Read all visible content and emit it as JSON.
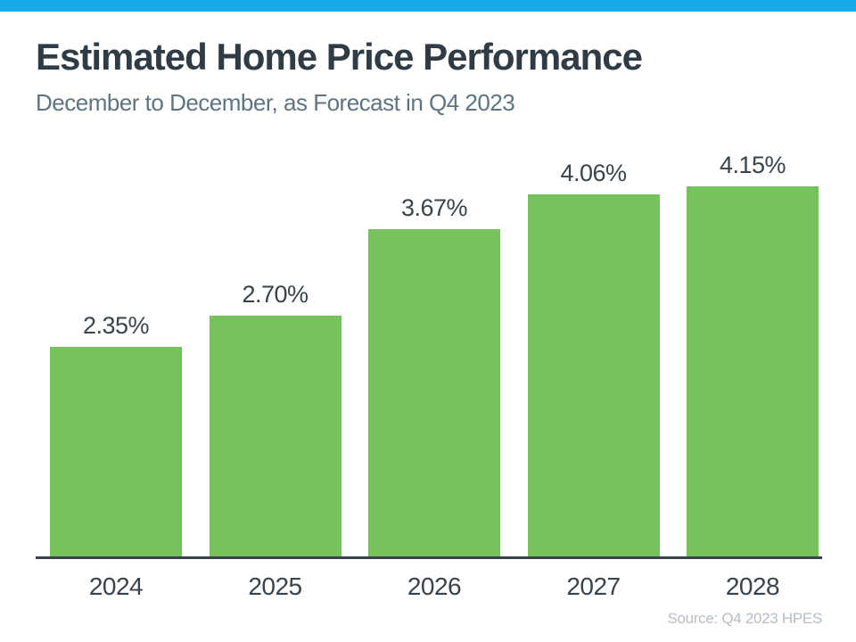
{
  "theme": {
    "accent_color": "#18A9E9",
    "background": "#FFFFFF",
    "title_color": "#2F3B45",
    "subtitle_color": "#5E7480",
    "label_color": "#39434C",
    "axis_color": "#39434C",
    "source_color": "#B7BDC3"
  },
  "header": {
    "title": "Estimated Home Price Performance",
    "subtitle": "December to December, as Forecast in Q4 2023"
  },
  "chart_data": {
    "type": "bar",
    "title": "Estimated Home Price Performance",
    "subtitle": "December to December, as Forecast in Q4 2023",
    "categories": [
      "2024",
      "2025",
      "2026",
      "2027",
      "2028"
    ],
    "values": [
      2.35,
      2.7,
      3.67,
      4.06,
      4.15
    ],
    "data_labels": [
      "2.35%",
      "2.70%",
      "3.67%",
      "4.06%",
      "4.15%"
    ],
    "bar_color": "#76C25C",
    "xlabel": "",
    "ylabel": "",
    "ylim": [
      0,
      4.6
    ],
    "grid": false,
    "legend": "none",
    "y_axis_visible": false
  },
  "footer": {
    "source": "Source: Q4 2023 HPES"
  }
}
